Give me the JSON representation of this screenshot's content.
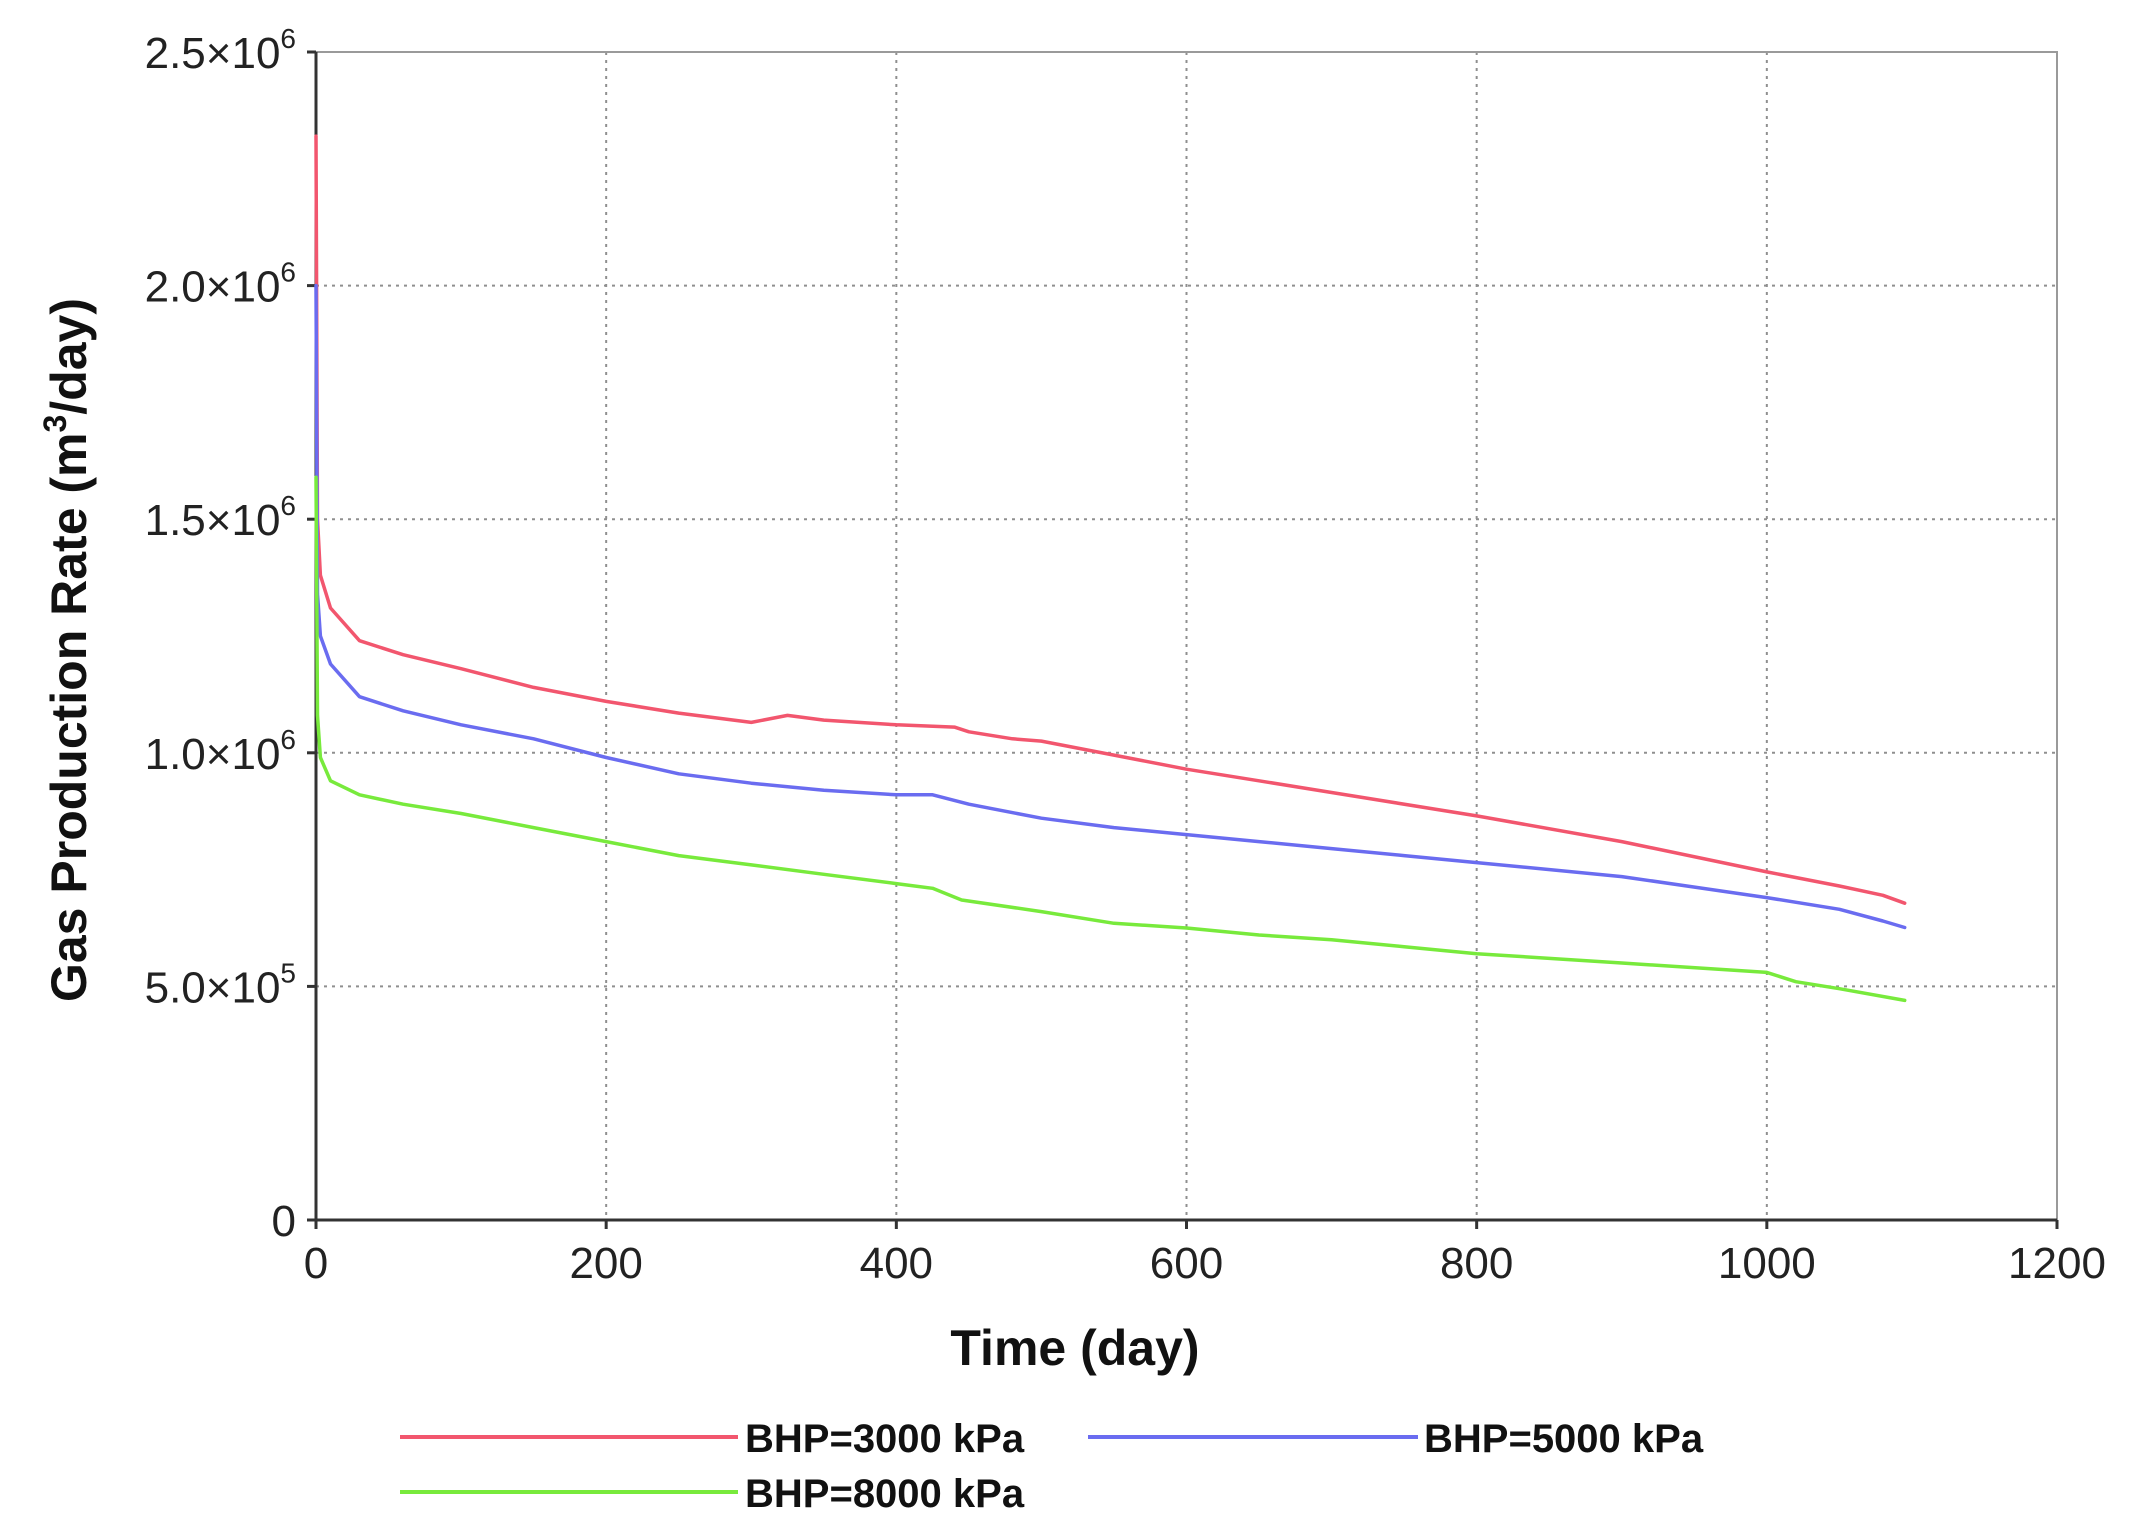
{
  "chart_data": {
    "type": "line",
    "xlabel": "Time (day)",
    "ylabel_main": "Gas Production Rate (m",
    "ylabel_sup": "3",
    "ylabel_end": "/day)",
    "xlim": [
      0,
      1200
    ],
    "ylim": [
      0,
      2500000
    ],
    "grid": true,
    "legend_position": "bottom",
    "x_ticks": [
      0,
      200,
      400,
      600,
      800,
      1000,
      1200
    ],
    "x_tick_labels": [
      "0",
      "200",
      "400",
      "600",
      "800",
      "1000",
      "1200"
    ],
    "y_ticks": [
      0,
      500000,
      1000000,
      1500000,
      2000000,
      2500000
    ],
    "y_tick_labels": [
      {
        "base": "0",
        "exp": ""
      },
      {
        "base": "5.0×10",
        "exp": "5"
      },
      {
        "base": "1.0×10",
        "exp": "6"
      },
      {
        "base": "1.5×10",
        "exp": "6"
      },
      {
        "base": "2.0×10",
        "exp": "6"
      },
      {
        "base": "2.5×10",
        "exp": "6"
      }
    ],
    "series": [
      {
        "name": "BHP=3000 kPa",
        "color": "#f2566e",
        "points": [
          [
            0,
            2320000
          ],
          [
            1,
            1500000
          ],
          [
            3,
            1380000
          ],
          [
            10,
            1310000
          ],
          [
            30,
            1240000
          ],
          [
            60,
            1210000
          ],
          [
            100,
            1180000
          ],
          [
            150,
            1140000
          ],
          [
            200,
            1110000
          ],
          [
            250,
            1085000
          ],
          [
            300,
            1065000
          ],
          [
            325,
            1080000
          ],
          [
            350,
            1070000
          ],
          [
            400,
            1060000
          ],
          [
            440,
            1055000
          ],
          [
            450,
            1045000
          ],
          [
            480,
            1030000
          ],
          [
            500,
            1025000
          ],
          [
            550,
            995000
          ],
          [
            600,
            965000
          ],
          [
            650,
            940000
          ],
          [
            700,
            915000
          ],
          [
            800,
            865000
          ],
          [
            900,
            810000
          ],
          [
            1000,
            745000
          ],
          [
            1050,
            715000
          ],
          [
            1080,
            695000
          ],
          [
            1095,
            678000
          ]
        ]
      },
      {
        "name": "BHP=5000 kPa",
        "color": "#6a6cf0",
        "points": [
          [
            0,
            2000000
          ],
          [
            1,
            1340000
          ],
          [
            3,
            1250000
          ],
          [
            10,
            1190000
          ],
          [
            30,
            1120000
          ],
          [
            60,
            1090000
          ],
          [
            100,
            1060000
          ],
          [
            150,
            1030000
          ],
          [
            200,
            990000
          ],
          [
            250,
            955000
          ],
          [
            300,
            935000
          ],
          [
            350,
            920000
          ],
          [
            400,
            910000
          ],
          [
            425,
            910000
          ],
          [
            450,
            890000
          ],
          [
            500,
            860000
          ],
          [
            550,
            840000
          ],
          [
            600,
            825000
          ],
          [
            650,
            810000
          ],
          [
            700,
            795000
          ],
          [
            750,
            780000
          ],
          [
            800,
            765000
          ],
          [
            900,
            735000
          ],
          [
            1000,
            690000
          ],
          [
            1050,
            665000
          ],
          [
            1080,
            640000
          ],
          [
            1095,
            626000
          ]
        ]
      },
      {
        "name": "BHP=8000 kPa",
        "color": "#78ea3c",
        "points": [
          [
            0,
            1590000
          ],
          [
            1,
            1080000
          ],
          [
            3,
            990000
          ],
          [
            10,
            940000
          ],
          [
            30,
            910000
          ],
          [
            60,
            890000
          ],
          [
            100,
            870000
          ],
          [
            150,
            840000
          ],
          [
            200,
            810000
          ],
          [
            250,
            780000
          ],
          [
            300,
            760000
          ],
          [
            350,
            740000
          ],
          [
            400,
            720000
          ],
          [
            425,
            710000
          ],
          [
            445,
            685000
          ],
          [
            500,
            660000
          ],
          [
            550,
            635000
          ],
          [
            600,
            625000
          ],
          [
            650,
            610000
          ],
          [
            700,
            600000
          ],
          [
            750,
            585000
          ],
          [
            800,
            570000
          ],
          [
            900,
            550000
          ],
          [
            1000,
            530000
          ],
          [
            1020,
            510000
          ],
          [
            1050,
            495000
          ],
          [
            1095,
            470000
          ]
        ]
      }
    ]
  }
}
